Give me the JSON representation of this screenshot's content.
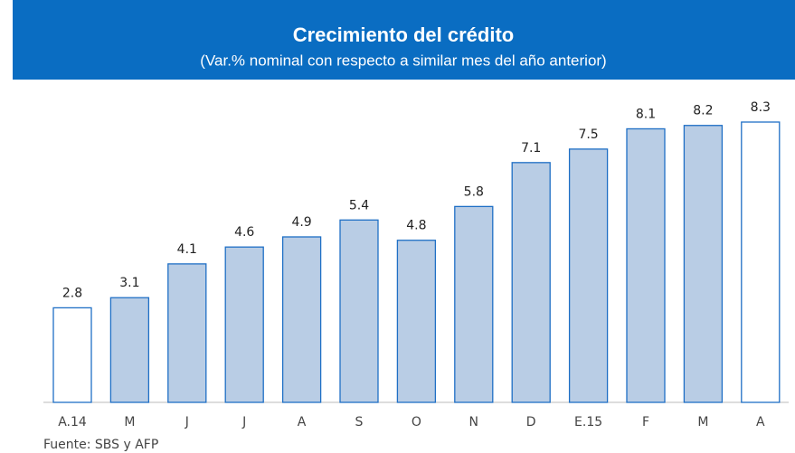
{
  "chart_data": {
    "type": "bar",
    "title": "Crecimiento del crédito",
    "subtitle": "(Var.% nominal con respecto a similar mes del año anterior)",
    "categories": [
      "A.14",
      "M",
      "J",
      "J",
      "A",
      "S",
      "O",
      "N",
      "D",
      "E.15",
      "F",
      "M",
      "A"
    ],
    "values": [
      2.8,
      3.1,
      4.1,
      4.6,
      4.9,
      5.4,
      4.8,
      5.8,
      7.1,
      7.5,
      8.1,
      8.2,
      8.3
    ],
    "colors": [
      "#ffffff",
      "#b9cde5",
      "#b9cde5",
      "#b9cde5",
      "#b9cde5",
      "#b9cde5",
      "#b9cde5",
      "#b9cde5",
      "#b9cde5",
      "#b9cde5",
      "#b9cde5",
      "#b9cde5",
      "#ffffff"
    ],
    "edge_color": "#1f6fc5",
    "header_color": "#0a6dc2",
    "source": "Fuente: SBS y AFP"
  }
}
